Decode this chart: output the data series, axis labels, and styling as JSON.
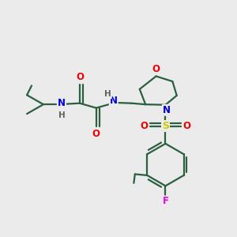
{
  "bg_color": "#ebebeb",
  "bond_color": "#2a6040",
  "atom_colors": {
    "N": "#0000dd",
    "O": "#ee0000",
    "S": "#cccc00",
    "F": "#ee00ee",
    "H": "#606060",
    "C": "#2a6040"
  },
  "figsize": [
    3.0,
    3.0
  ],
  "dpi": 100,
  "lw": 1.6
}
